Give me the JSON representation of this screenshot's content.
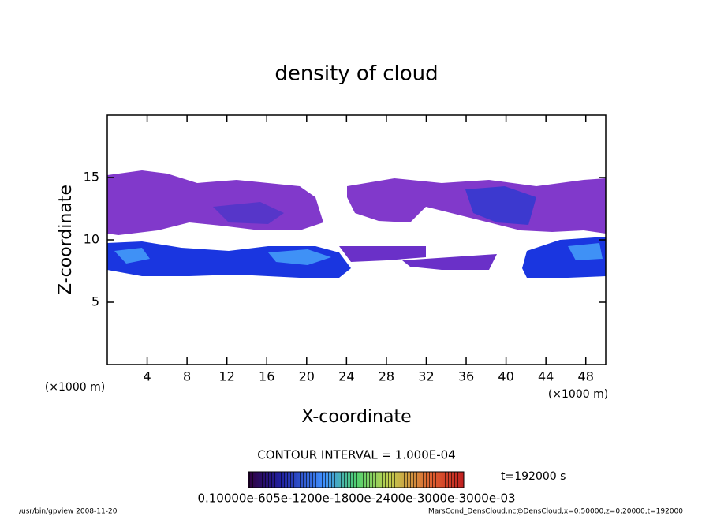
{
  "chart_data": {
    "type": "contour",
    "title": "density of cloud",
    "xlabel": "X-coordinate",
    "ylabel": "Z-coordinate",
    "xunit": "(×1000 m)",
    "xlim": [
      0,
      50
    ],
    "xticks": [
      4,
      8,
      12,
      16,
      20,
      24,
      28,
      32,
      36,
      40,
      44,
      48
    ],
    "ylim": [
      0,
      20
    ],
    "yticks": [
      5,
      10,
      15
    ],
    "contour_interval": "CONTOUR INTERVAL = 1.000E-04",
    "time": "t=192000 s",
    "colorbar_labels": "0.10000e-605e-1200e-1800e-2400e-3000e-3000e-03",
    "footer_left": "/usr/bin/gpview   2008-11-20",
    "footer_right": "MarsCond_DensCloud.nc@DensCloud,x=0:50000,z=0:20000,t=192000"
  }
}
